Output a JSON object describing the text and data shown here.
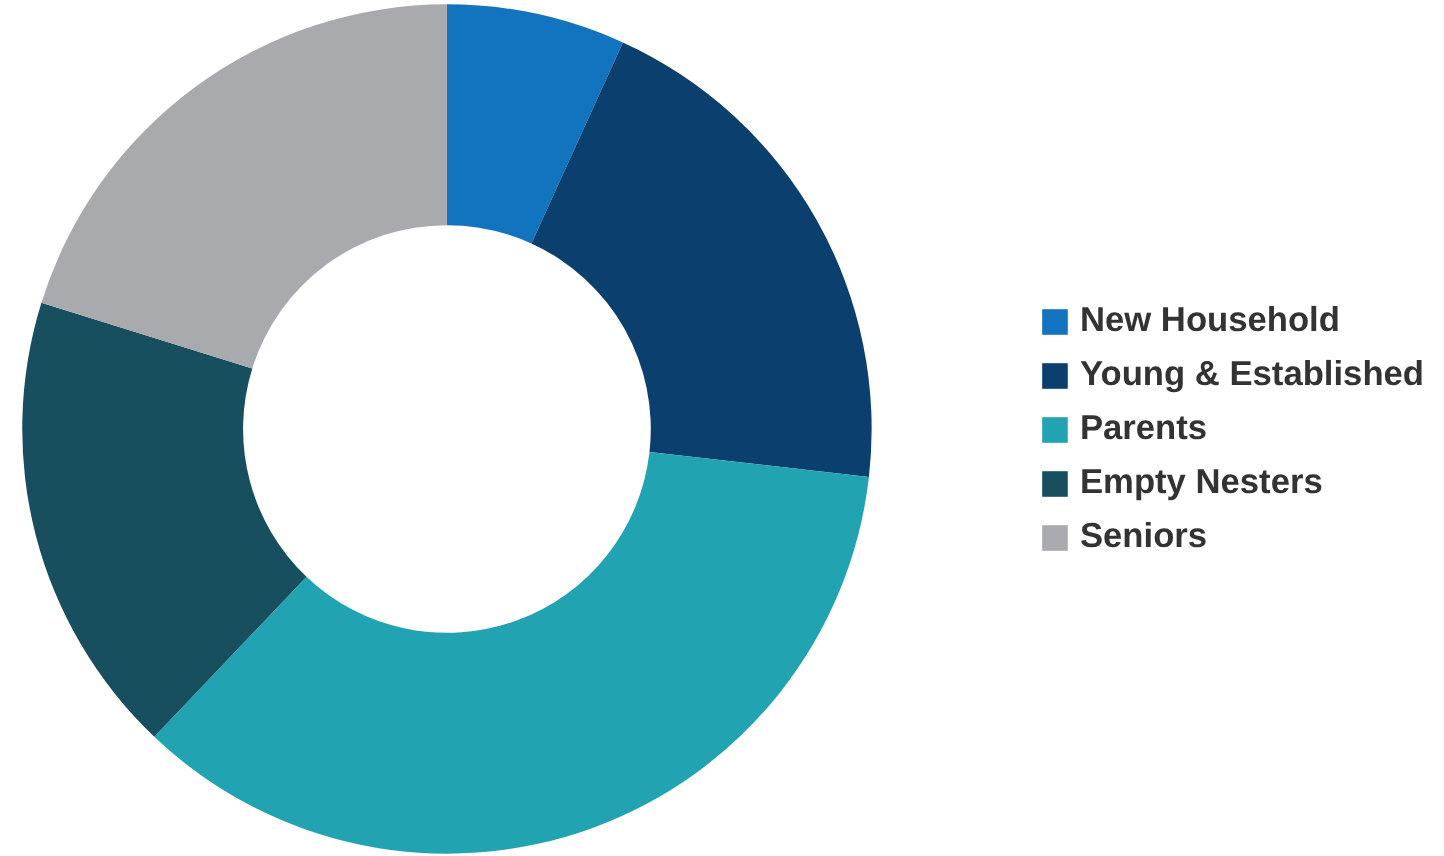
{
  "chart_data": {
    "type": "donut",
    "categories": [
      "New Household",
      "Young & Established",
      "Parents",
      "Empty Nesters",
      "Seniors"
    ],
    "values": [
      6.8,
      20,
      35.3,
      17.7,
      20.2
    ],
    "colors": [
      "#1273be",
      "#0b3f6e",
      "#22a3b1",
      "#174f5e",
      "#a9aaae"
    ],
    "legend": "right"
  }
}
